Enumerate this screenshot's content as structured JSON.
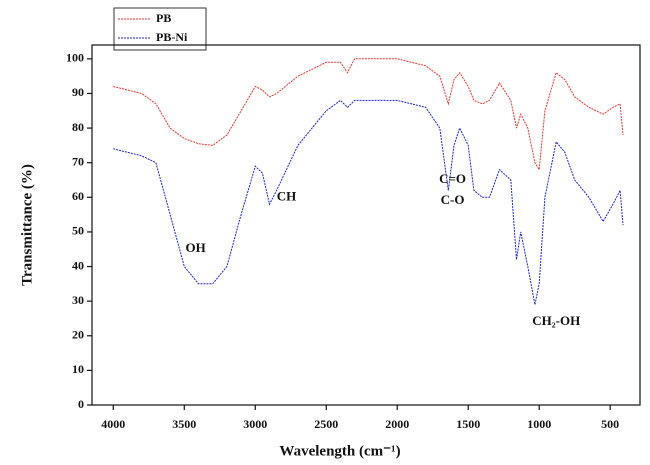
{
  "chart_data": {
    "type": "line",
    "xlabel": "Wavelength (cm⁻¹)",
    "ylabel": "Transmittance (%)",
    "x": [
      4000,
      3900,
      3800,
      3700,
      3600,
      3500,
      3400,
      3300,
      3200,
      3100,
      3000,
      2950,
      2900,
      2850,
      2700,
      2500,
      2400,
      2350,
      2300,
      2100,
      2000,
      1800,
      1700,
      1640,
      1600,
      1560,
      1500,
      1460,
      1400,
      1350,
      1280,
      1200,
      1160,
      1130,
      1080,
      1030,
      1000,
      960,
      880,
      820,
      750,
      650,
      550,
      480,
      430,
      410
    ],
    "series": [
      {
        "name": "PB",
        "color": "#e8322e",
        "values": [
          92,
          91,
          90,
          87,
          80,
          77,
          75.5,
          75,
          78,
          85,
          92,
          91,
          89,
          90,
          95,
          99,
          99,
          96,
          100,
          100,
          100,
          98,
          95,
          87,
          94,
          96,
          92,
          88,
          87,
          88,
          93,
          88,
          80,
          84,
          80,
          70,
          68,
          85,
          96,
          94,
          89,
          86,
          84,
          86,
          87,
          78
        ]
      },
      {
        "name": "PB-Ni",
        "color": "#1a22d8",
        "values": [
          74,
          73,
          72,
          70,
          55,
          40,
          35,
          35,
          40,
          55,
          69,
          67,
          58,
          62,
          75,
          85,
          88,
          86,
          88,
          88,
          88,
          86,
          80,
          62,
          75,
          80,
          75,
          62,
          60,
          60,
          68,
          65,
          42,
          50,
          40,
          29,
          35,
          60,
          76,
          73,
          65,
          60,
          53,
          58,
          62,
          52
        ]
      }
    ],
    "xlim": [
      4150,
      290
    ],
    "ylim": [
      0,
      104
    ],
    "xticks": [
      4000,
      3500,
      3000,
      2500,
      2000,
      1500,
      1000,
      500
    ],
    "yticks": [
      0,
      10,
      20,
      30,
      40,
      50,
      60,
      70,
      80,
      90,
      100
    ],
    "annotations": [
      {
        "text": "OH",
        "x": 3420,
        "y": 45
      },
      {
        "text": "CH",
        "x": 2780,
        "y": 60
      },
      {
        "text": "C=O",
        "x": 1610,
        "y": 65
      },
      {
        "text": "C-O",
        "x": 1610,
        "y": 59
      },
      {
        "text": "CH₂-OH",
        "x": 880,
        "y": 24
      }
    ]
  }
}
